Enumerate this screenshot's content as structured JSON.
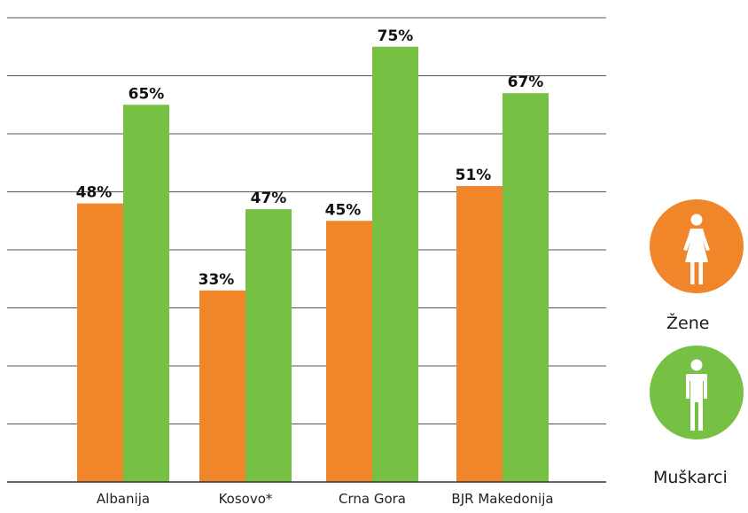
{
  "chart_data": {
    "type": "bar",
    "categories": [
      "Albanija",
      "Kosovo*",
      "Crna Gora",
      "BJR Makedonija"
    ],
    "series": [
      {
        "name": "Žene",
        "color": "#f0852a",
        "values": [
          48,
          33,
          45,
          51
        ],
        "labels": [
          "48%",
          "33%",
          "45%",
          "51%"
        ]
      },
      {
        "name": "Muškarci",
        "color": "#76c043",
        "values": [
          65,
          47,
          75,
          67
        ],
        "labels": [
          "65%",
          "47%",
          "75%",
          "67%"
        ]
      }
    ],
    "ylim": [
      0,
      80
    ],
    "grid": true,
    "legend_position": "right"
  },
  "legend": {
    "women_label": "Žene",
    "women_icon": "woman-icon",
    "men_label": "Muškarci",
    "men_icon": "man-icon",
    "women_color": "#f0852a",
    "men_color": "#76c043"
  }
}
